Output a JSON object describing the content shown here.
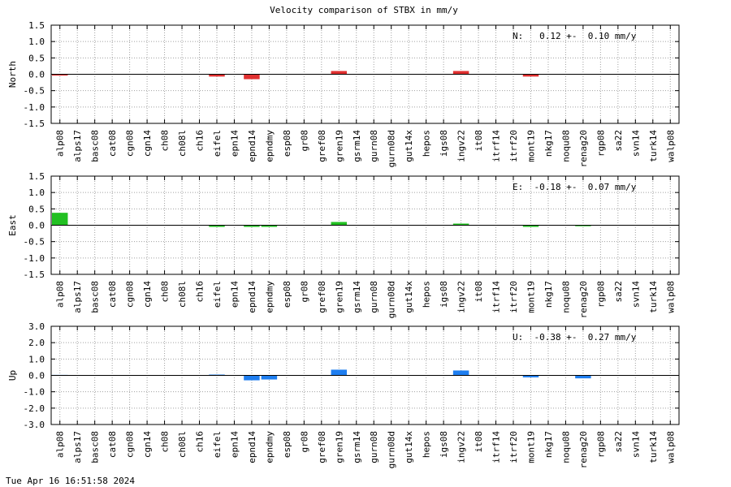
{
  "chart_data": {
    "title": "Velocity comparison of STBX in mm/y",
    "type": "bar",
    "categories": [
      "alp08",
      "alps17",
      "basc08",
      "cat08",
      "cgn08",
      "cgn14",
      "ch08",
      "ch08l",
      "ch16",
      "eifel",
      "epn14",
      "epnd14",
      "epndmy",
      "esp08",
      "gr08",
      "gref08",
      "gren19",
      "gsrm14",
      "gurn08",
      "gurn08d",
      "gut14x",
      "hepos",
      "igs08",
      "ingv22",
      "it08",
      "itrf14",
      "itrf20",
      "mont19",
      "nkg17",
      "noqu08",
      "renag20",
      "rgp08",
      "sa22",
      "svn14",
      "turk14",
      "walp08"
    ],
    "panels": [
      {
        "ylabel": "North",
        "color": "#e03030",
        "ylim": [
          -1.5,
          1.5
        ],
        "yticks": [
          "1.5",
          "1.0",
          "0.5",
          "0.0",
          "-0.5",
          "-1.0",
          "-1.5"
        ],
        "ytick_values": [
          1.5,
          1.0,
          0.5,
          0.0,
          -0.5,
          -1.0,
          -1.5
        ],
        "stat": "N:   0.12 +-  0.10 mm/y",
        "values": [
          -0.04,
          0,
          0,
          0,
          0,
          0,
          0,
          0,
          0,
          -0.07,
          0,
          -0.15,
          0,
          0,
          0,
          0,
          0.1,
          0,
          0,
          0,
          0,
          0,
          0,
          0.1,
          0,
          0,
          0,
          -0.07,
          0,
          0,
          0,
          0,
          0,
          0,
          0,
          0
        ]
      },
      {
        "ylabel": "East",
        "color": "#22c022",
        "ylim": [
          -1.5,
          1.5
        ],
        "yticks": [
          "1.5",
          "1.0",
          "0.5",
          "0.0",
          "-0.5",
          "-1.0",
          "-1.5"
        ],
        "ytick_values": [
          1.5,
          1.0,
          0.5,
          0.0,
          -0.5,
          -1.0,
          -1.5
        ],
        "stat": "E:  -0.18 +-  0.07 mm/y",
        "values": [
          0.38,
          0,
          0,
          0,
          0,
          0,
          0,
          0,
          0,
          -0.05,
          0,
          -0.05,
          -0.05,
          0,
          0,
          0,
          0.1,
          0,
          0,
          0,
          0,
          0,
          0,
          0.05,
          0,
          0,
          0,
          -0.05,
          0,
          0,
          -0.03,
          0,
          0,
          0,
          0,
          0
        ]
      },
      {
        "ylabel": "Up",
        "color": "#1e7ef0",
        "ylim": [
          -3.0,
          3.0
        ],
        "yticks": [
          "3.0",
          "2.0",
          "1.0",
          "0.0",
          "-1.0",
          "-2.0",
          "-3.0"
        ],
        "ytick_values": [
          3.0,
          2.0,
          1.0,
          0.0,
          -1.0,
          -2.0,
          -3.0
        ],
        "stat": "U:  -0.38 +-  0.27 mm/y",
        "values": [
          0.03,
          0,
          0,
          0,
          0,
          0,
          0,
          0,
          0,
          0.05,
          0,
          -0.3,
          -0.25,
          0,
          0,
          0,
          0.35,
          0,
          0,
          0,
          0,
          0,
          0,
          0.3,
          0,
          0,
          0,
          -0.12,
          0,
          0,
          -0.18,
          0,
          0,
          0,
          0,
          0
        ]
      }
    ],
    "grid": true
  },
  "timestamp": "Tue Apr 16 16:51:58 2024"
}
